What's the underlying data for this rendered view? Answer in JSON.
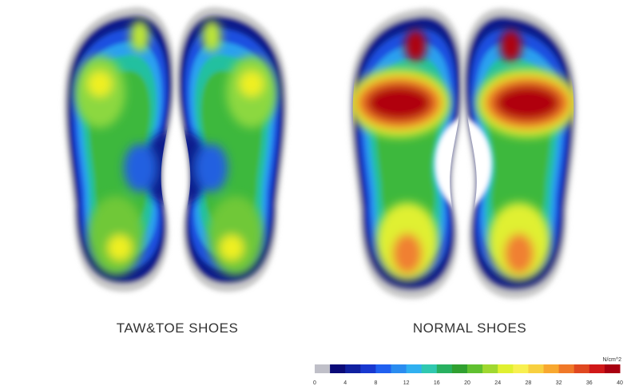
{
  "left_label": "TAW&TOE SHOES",
  "right_label": "NORMAL SHOES",
  "colorbar": {
    "unit": "N/cm^2",
    "ticks": [
      0,
      4,
      8,
      12,
      16,
      20,
      24,
      28,
      32,
      36,
      40
    ],
    "colors": [
      "#bfbfc8",
      "#0a0a78",
      "#1020a0",
      "#1838d0",
      "#2060f0",
      "#2a8cf0",
      "#30b0f0",
      "#30c8b0",
      "#28b060",
      "#30a030",
      "#60c030",
      "#a0d830",
      "#e0f030",
      "#f8f050",
      "#f8d040",
      "#f8a830",
      "#f07828",
      "#e04820",
      "#d01818",
      "#a80010"
    ]
  }
}
